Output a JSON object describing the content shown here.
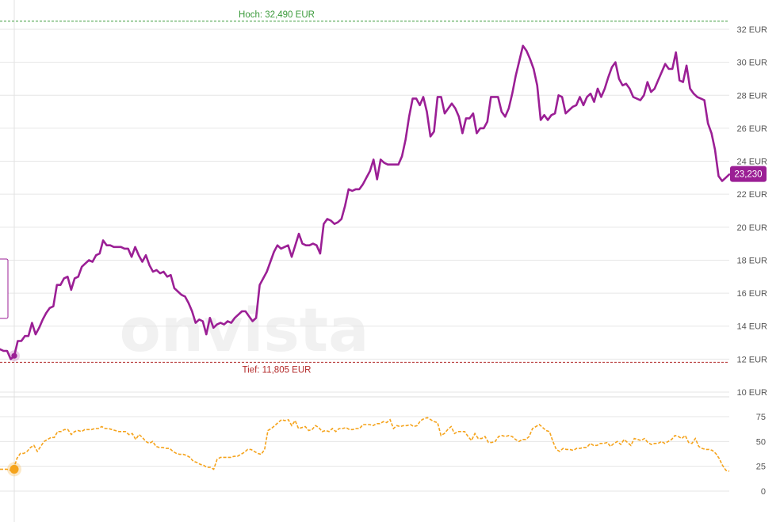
{
  "watermark": "onvista",
  "colors": {
    "price": "#9b1f95",
    "indicator": "#f5a31b",
    "high": "#3a9a3a",
    "low": "#b32a2a",
    "grid": "#e6e6e6"
  },
  "high_line": {
    "label": "Hoch: 32,490 EUR",
    "value": 32.49
  },
  "low_line": {
    "label": "Tief: 11,805 EUR",
    "value": 11.805
  },
  "last_value": {
    "label": "23,230",
    "value": 23.23
  },
  "chart_data": [
    {
      "type": "line",
      "name": "price",
      "y_unit": "EUR",
      "ylim": [
        10,
        32
      ],
      "grid": true,
      "ytick_values": [
        10,
        12,
        14,
        16,
        18,
        20,
        22,
        24,
        26,
        28,
        30,
        32
      ],
      "ytick_labels": [
        "10 EUR",
        "12 EUR",
        "14 EUR",
        "16 EUR",
        "18 EUR",
        "20 EUR",
        "22 EUR",
        "24 EUR",
        "26 EUR",
        "28 EUR",
        "30 EUR",
        "32 EUR"
      ],
      "values": [
        12.6,
        12.5,
        12.5,
        12.0,
        12.2,
        13.1,
        13.1,
        13.4,
        13.4,
        14.2,
        13.5,
        13.9,
        14.4,
        14.8,
        15.1,
        15.2,
        16.5,
        16.5,
        16.9,
        17.0,
        16.2,
        16.9,
        17.0,
        17.6,
        17.8,
        18.0,
        17.9,
        18.3,
        18.4,
        19.2,
        18.9,
        18.9,
        18.8,
        18.8,
        18.8,
        18.7,
        18.7,
        18.2,
        18.8,
        18.3,
        17.9,
        18.3,
        17.7,
        17.3,
        17.4,
        17.2,
        17.3,
        17.0,
        17.1,
        16.3,
        16.1,
        15.9,
        15.8,
        15.4,
        14.9,
        14.2,
        14.4,
        14.3,
        13.5,
        14.5,
        13.9,
        14.1,
        14.2,
        14.1,
        14.3,
        14.2,
        14.5,
        14.7,
        14.9,
        14.9,
        14.6,
        14.3,
        14.5,
        16.5,
        16.9,
        17.3,
        17.9,
        18.5,
        18.9,
        18.7,
        18.8,
        18.9,
        18.2,
        18.9,
        19.6,
        19.0,
        18.9,
        18.9,
        19.0,
        18.9,
        18.4,
        20.2,
        20.5,
        20.4,
        20.2,
        20.3,
        20.5,
        21.3,
        22.3,
        22.2,
        22.3,
        22.3,
        22.6,
        23.0,
        23.4,
        24.1,
        22.9,
        24.1,
        23.9,
        23.8,
        23.8,
        23.8,
        23.8,
        24.3,
        25.3,
        26.7,
        27.8,
        27.8,
        27.4,
        27.9,
        27.0,
        25.5,
        25.8,
        27.9,
        27.9,
        26.9,
        27.2,
        27.5,
        27.2,
        26.7,
        25.7,
        26.6,
        26.6,
        26.9,
        25.7,
        26.0,
        26.0,
        26.4,
        27.9,
        27.9,
        27.9,
        27.0,
        26.7,
        27.2,
        28.1,
        29.2,
        30.1,
        31.0,
        30.7,
        30.2,
        29.6,
        28.6,
        26.5,
        26.8,
        26.5,
        26.8,
        26.9,
        28.0,
        27.9,
        26.9,
        27.1,
        27.3,
        27.4,
        27.9,
        27.4,
        27.9,
        28.1,
        27.6,
        28.4,
        27.9,
        28.4,
        29.1,
        29.7,
        30.0,
        29.0,
        28.6,
        28.7,
        28.4,
        27.9,
        27.8,
        27.7,
        28.0,
        28.8,
        28.2,
        28.4,
        28.9,
        29.4,
        29.9,
        29.6,
        29.6,
        30.6,
        28.9,
        28.8,
        29.8,
        28.4,
        28.1,
        27.9,
        27.8,
        27.7,
        26.3,
        25.7,
        24.7,
        23.1,
        22.8,
        23.0,
        23.2
      ]
    },
    {
      "type": "line",
      "name": "indicator",
      "ylim": [
        0,
        75
      ],
      "grid": true,
      "ytick_values": [
        0,
        25,
        50,
        75
      ],
      "ytick_labels": [
        "0",
        "25",
        "50",
        "75"
      ],
      "values": [
        22,
        22,
        22,
        21,
        22,
        33,
        38,
        38,
        40,
        44,
        46,
        40,
        45,
        50,
        52,
        54,
        54,
        60,
        60,
        62,
        62,
        57,
        60,
        61,
        60,
        62,
        62,
        62,
        63,
        63,
        65,
        63,
        63,
        62,
        61,
        60,
        60,
        60,
        57,
        58,
        52,
        57,
        54,
        50,
        48,
        50,
        45,
        44,
        44,
        43,
        43,
        40,
        38,
        37,
        37,
        36,
        34,
        30,
        29,
        27,
        26,
        24,
        24,
        22,
        32,
        34,
        34,
        34,
        34,
        35,
        35,
        37,
        39,
        42,
        42,
        40,
        38,
        37,
        42,
        61,
        63,
        66,
        69,
        72,
        71,
        72,
        66,
        71,
        63,
        64,
        65,
        61,
        62,
        66,
        64,
        60,
        61,
        60,
        63,
        60,
        63,
        63,
        64,
        62,
        62,
        63,
        63,
        67,
        67,
        67,
        66,
        68,
        68,
        70,
        69,
        72,
        63,
        66,
        65,
        66,
        66,
        67,
        65,
        66,
        71,
        73,
        74,
        72,
        70,
        69,
        56,
        58,
        62,
        65,
        58,
        60,
        60,
        60,
        55,
        51,
        58,
        53,
        53,
        55,
        49,
        49,
        50,
        55,
        56,
        55,
        56,
        55,
        52,
        50,
        52,
        52,
        55,
        63,
        65,
        67,
        64,
        61,
        60,
        50,
        42,
        40,
        43,
        42,
        42,
        41,
        43,
        43,
        44,
        44,
        48,
        46,
        46,
        48,
        48,
        49,
        45,
        48,
        50,
        47,
        52,
        49,
        46,
        53,
        52,
        51,
        53,
        49,
        47,
        48,
        48,
        50,
        48,
        50,
        52,
        56,
        55,
        53,
        56,
        49,
        48,
        53,
        45,
        43,
        42,
        42,
        41,
        38,
        33,
        26,
        21,
        20
      ]
    }
  ]
}
